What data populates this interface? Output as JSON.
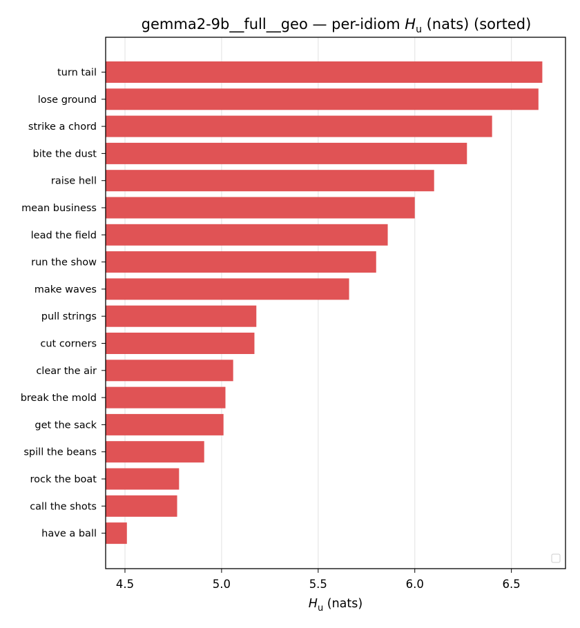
{
  "chart_data": {
    "type": "bar",
    "orientation": "horizontal",
    "title": "gemma2-9b__full__geo — per-idiom H_u (nats) (sorted)",
    "title_parts": {
      "before": "gemma2-9b__full__geo — per-idiom ",
      "var": "H",
      "sub": "u",
      "after": " (nats) (sorted)"
    },
    "xlabel": "H_u (nats)",
    "xlabel_parts": {
      "var": "H",
      "sub": "u",
      "after": " (nats)"
    },
    "ylabel": "",
    "xlim": [
      4.4,
      6.78
    ],
    "xticks": [
      4.5,
      5.0,
      5.5,
      6.0,
      6.5
    ],
    "xtick_labels": [
      "4.5",
      "5.0",
      "5.5",
      "6.0",
      "6.5"
    ],
    "grid": {
      "x": true,
      "y": false
    },
    "legend": {
      "placement": "lower-right",
      "entries": []
    },
    "bar_color": "#e05355",
    "categories": [
      "turn tail",
      "lose ground",
      "strike a chord",
      "bite the dust",
      "raise hell",
      "mean business",
      "lead the field",
      "run the show",
      "make waves",
      "pull strings",
      "cut corners",
      "clear the air",
      "break the mold",
      "get the sack",
      "spill the beans",
      "rock the boat",
      "call the shots",
      "have a ball"
    ],
    "values": [
      6.66,
      6.64,
      6.4,
      6.27,
      6.1,
      6.0,
      5.86,
      5.8,
      5.66,
      5.18,
      5.17,
      5.06,
      5.02,
      5.01,
      4.91,
      4.78,
      4.77,
      4.51
    ]
  }
}
